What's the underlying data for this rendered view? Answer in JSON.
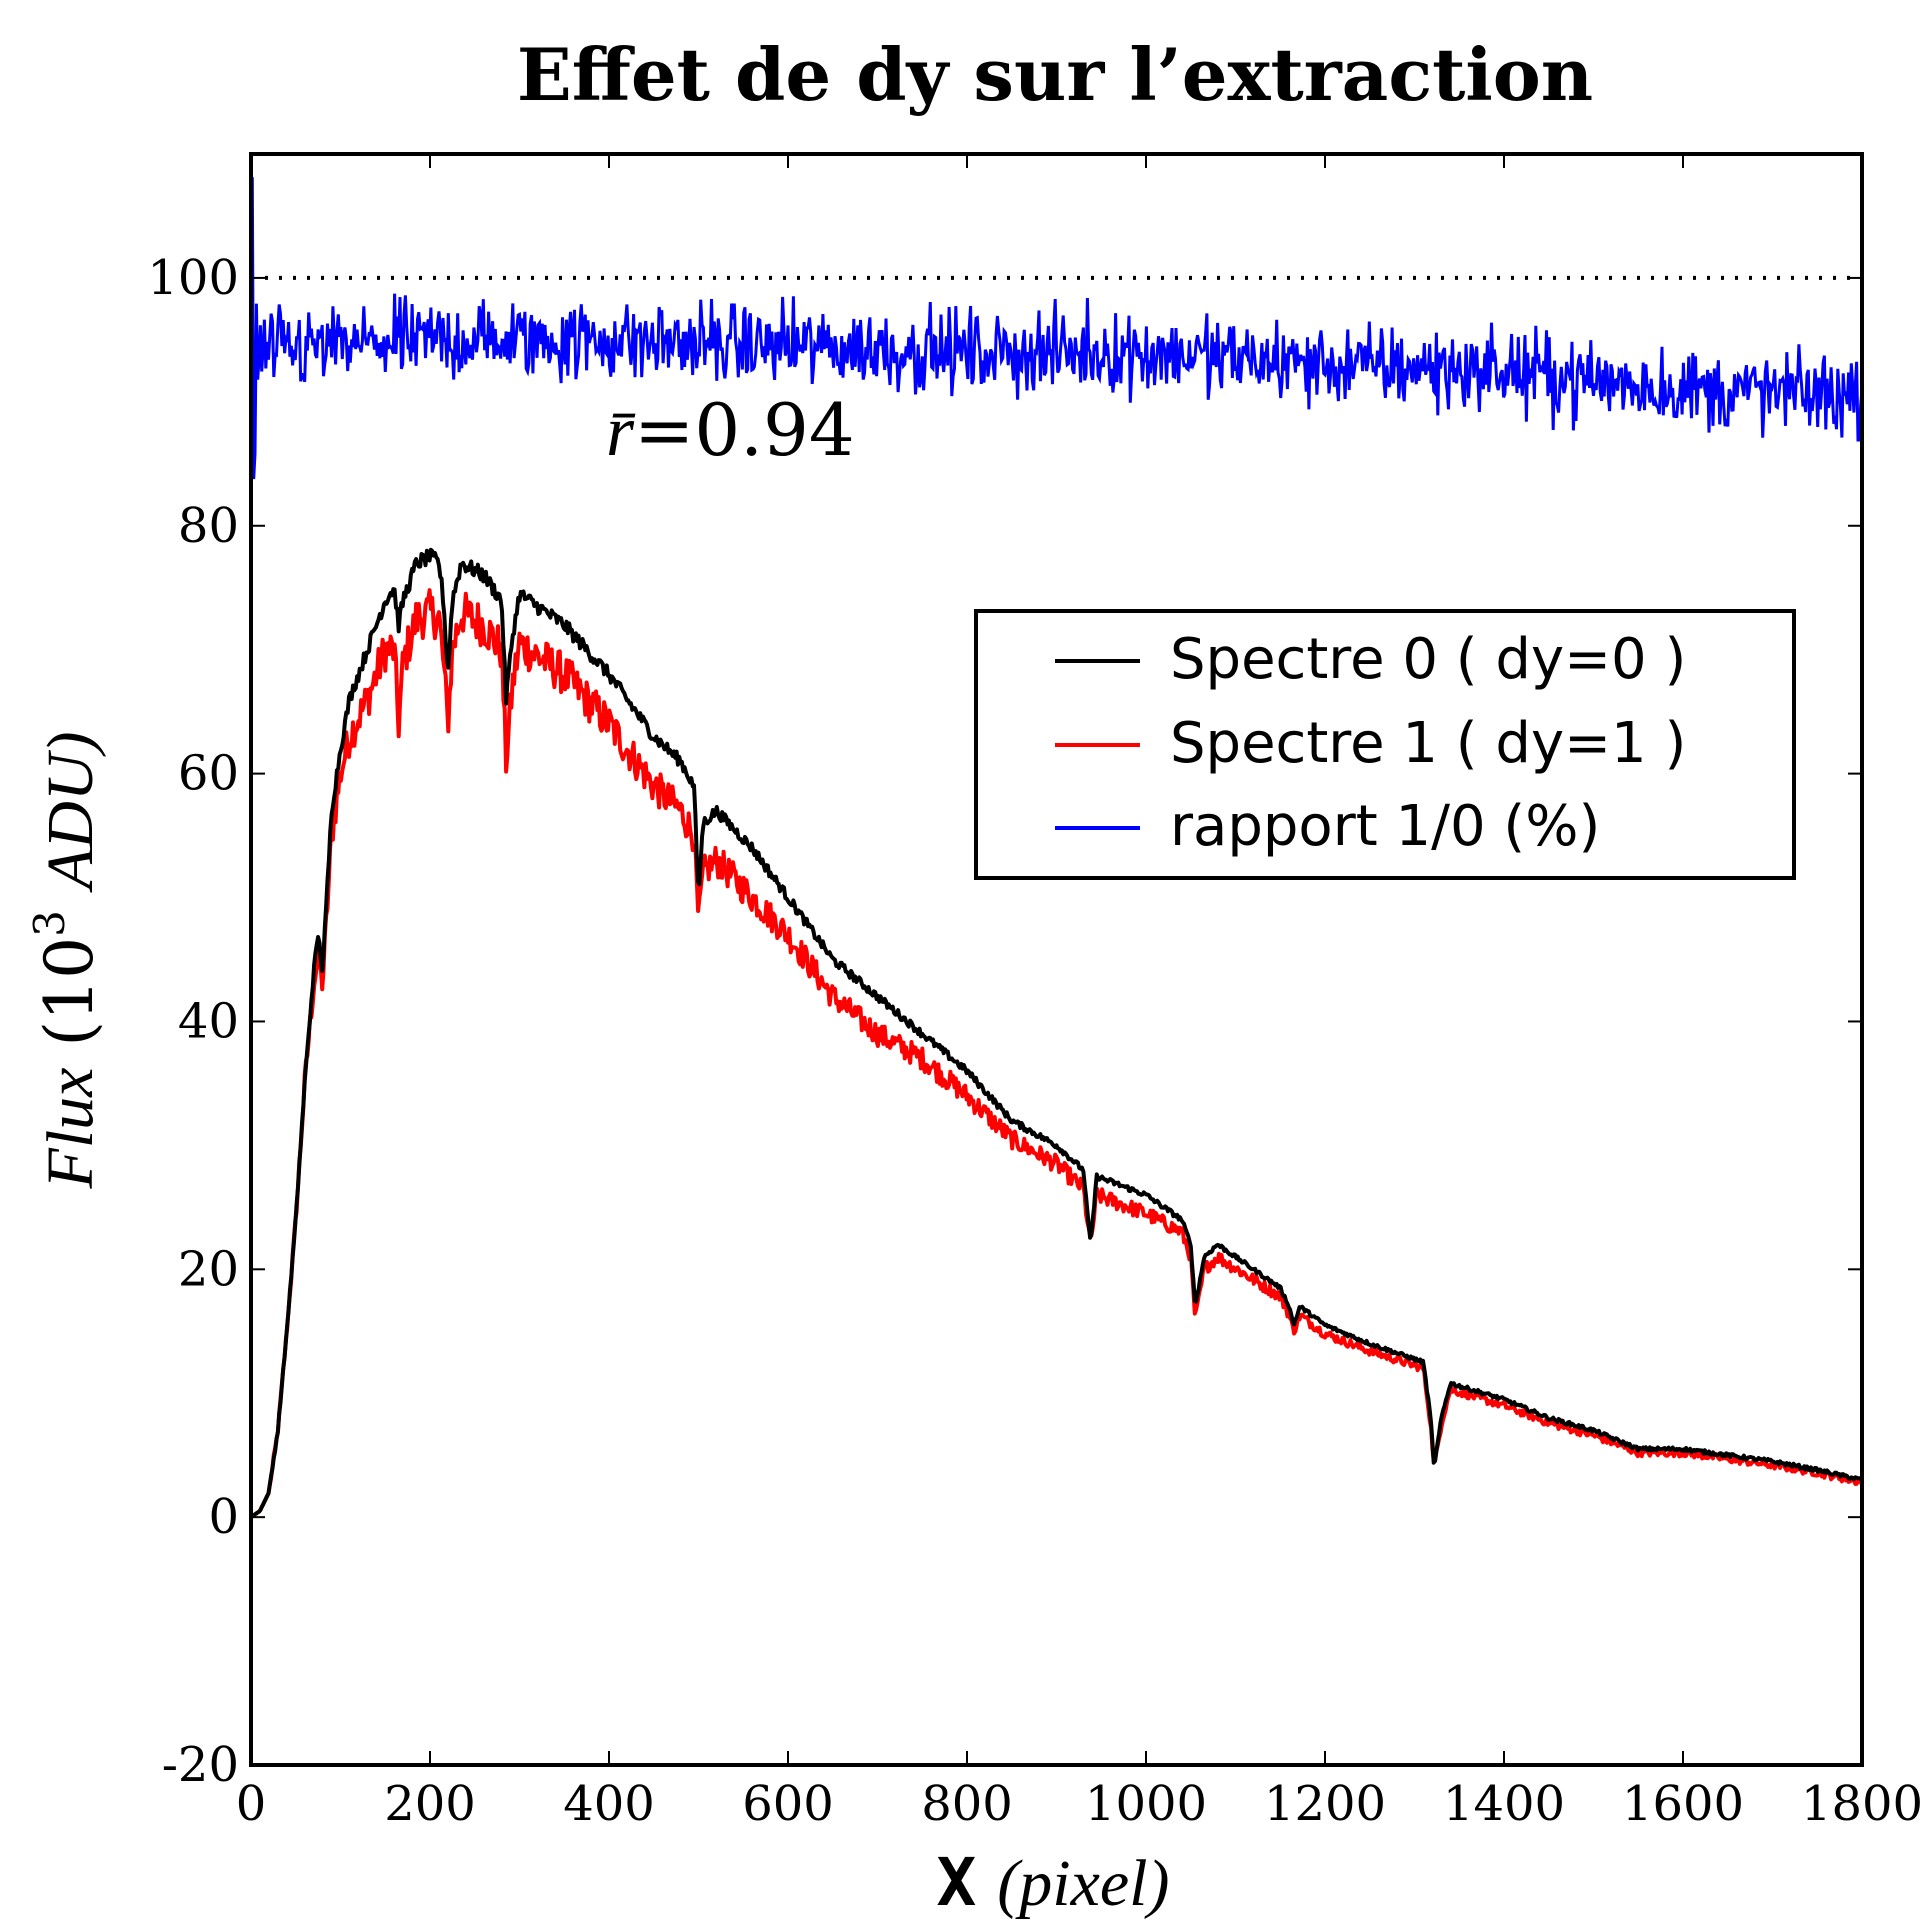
{
  "chart_data": {
    "type": "line",
    "title": "Effet de dy sur l’extraction",
    "xlabel_prefix": "X",
    "xlabel_unit": "(pixel)",
    "ylabel_main": "Flux",
    "ylabel_unit_open": "(10",
    "ylabel_exp": "3",
    "ylabel_unit_close": "ADU)",
    "xlim": [
      0,
      1800
    ],
    "ylim": [
      -20,
      110
    ],
    "xticks": [
      "0",
      "200",
      "400",
      "600",
      "800",
      "1000",
      "1200",
      "1400",
      "1600",
      "1800"
    ],
    "yticks": [
      "-20",
      "0",
      "20",
      "40",
      "60",
      "80",
      "100"
    ],
    "grid": false,
    "legend_placement": "center-right",
    "reference_line": {
      "y": 100,
      "style": "dotted",
      "color": "#000000"
    },
    "annotation": {
      "text_symbol": "r̄",
      "text_value": "=0.94",
      "x": 400,
      "y": 86
    },
    "series": [
      {
        "name": "Spectre 0 ( dy=0 )",
        "color": "#000000",
        "points": [
          [
            0,
            0
          ],
          [
            10,
            0.5
          ],
          [
            20,
            2
          ],
          [
            30,
            7
          ],
          [
            40,
            15
          ],
          [
            50,
            24
          ],
          [
            60,
            35
          ],
          [
            70,
            44
          ],
          [
            75,
            47
          ],
          [
            80,
            44
          ],
          [
            90,
            57
          ],
          [
            100,
            62
          ],
          [
            110,
            66
          ],
          [
            130,
            70
          ],
          [
            150,
            74
          ],
          [
            160,
            75
          ],
          [
            165,
            72
          ],
          [
            170,
            74
          ],
          [
            185,
            77
          ],
          [
            200,
            77.5
          ],
          [
            210,
            77
          ],
          [
            215,
            74
          ],
          [
            220,
            68
          ],
          [
            225,
            74
          ],
          [
            235,
            77
          ],
          [
            260,
            76
          ],
          [
            280,
            74
          ],
          [
            285,
            66
          ],
          [
            292,
            71
          ],
          [
            300,
            74.5
          ],
          [
            350,
            72
          ],
          [
            400,
            68
          ],
          [
            450,
            63
          ],
          [
            480,
            61
          ],
          [
            495,
            59
          ],
          [
            500,
            50
          ],
          [
            505,
            56
          ],
          [
            520,
            57
          ],
          [
            560,
            54
          ],
          [
            600,
            50
          ],
          [
            650,
            45
          ],
          [
            700,
            42
          ],
          [
            750,
            39
          ],
          [
            800,
            36
          ],
          [
            850,
            32
          ],
          [
            900,
            30
          ],
          [
            930,
            28
          ],
          [
            938,
            22
          ],
          [
            945,
            27.5
          ],
          [
            1000,
            26
          ],
          [
            1040,
            24
          ],
          [
            1050,
            22
          ],
          [
            1055,
            17
          ],
          [
            1065,
            21
          ],
          [
            1080,
            22
          ],
          [
            1150,
            18.5
          ],
          [
            1160,
            17
          ],
          [
            1165,
            15.5
          ],
          [
            1172,
            17
          ],
          [
            1200,
            15.5
          ],
          [
            1250,
            14
          ],
          [
            1310,
            12.5
          ],
          [
            1318,
            8
          ],
          [
            1322,
            4
          ],
          [
            1330,
            8
          ],
          [
            1340,
            10.8
          ],
          [
            1400,
            9.5
          ],
          [
            1450,
            8
          ],
          [
            1500,
            7
          ],
          [
            1550,
            5.5
          ],
          [
            1600,
            5.5
          ],
          [
            1650,
            5
          ],
          [
            1700,
            4.5
          ],
          [
            1750,
            3.8
          ],
          [
            1800,
            3
          ]
        ]
      },
      {
        "name": "Spectre 1 ( dy=1 )",
        "color": "#ff0000",
        "points": [
          [
            0,
            0
          ],
          [
            10,
            0.5
          ],
          [
            20,
            2
          ],
          [
            30,
            7
          ],
          [
            40,
            15
          ],
          [
            50,
            24
          ],
          [
            60,
            35
          ],
          [
            70,
            43
          ],
          [
            75,
            45
          ],
          [
            80,
            43
          ],
          [
            90,
            55
          ],
          [
            100,
            60
          ],
          [
            110,
            63
          ],
          [
            130,
            66
          ],
          [
            150,
            70
          ],
          [
            160,
            70
          ],
          [
            165,
            64
          ],
          [
            170,
            69
          ],
          [
            185,
            72.5
          ],
          [
            200,
            73
          ],
          [
            210,
            72.5
          ],
          [
            215,
            69
          ],
          [
            220,
            64
          ],
          [
            225,
            70
          ],
          [
            235,
            73
          ],
          [
            260,
            72
          ],
          [
            280,
            70
          ],
          [
            285,
            61
          ],
          [
            292,
            67
          ],
          [
            300,
            70.5
          ],
          [
            350,
            68
          ],
          [
            400,
            64
          ],
          [
            450,
            59
          ],
          [
            480,
            57
          ],
          [
            495,
            55
          ],
          [
            500,
            48
          ],
          [
            505,
            52
          ],
          [
            520,
            53
          ],
          [
            560,
            50
          ],
          [
            600,
            47
          ],
          [
            650,
            42
          ],
          [
            700,
            39
          ],
          [
            750,
            37
          ],
          [
            800,
            34
          ],
          [
            850,
            30.5
          ],
          [
            900,
            28.5
          ],
          [
            930,
            26.5
          ],
          [
            938,
            22
          ],
          [
            945,
            26
          ],
          [
            1000,
            24.5
          ],
          [
            1040,
            23
          ],
          [
            1050,
            21
          ],
          [
            1055,
            16
          ],
          [
            1065,
            20
          ],
          [
            1080,
            21
          ],
          [
            1150,
            17.8
          ],
          [
            1160,
            16.3
          ],
          [
            1165,
            15
          ],
          [
            1172,
            16.3
          ],
          [
            1200,
            14.8
          ],
          [
            1250,
            13.4
          ],
          [
            1310,
            12
          ],
          [
            1318,
            7.5
          ],
          [
            1322,
            4
          ],
          [
            1330,
            7.5
          ],
          [
            1340,
            10.3
          ],
          [
            1400,
            9
          ],
          [
            1450,
            7.6
          ],
          [
            1500,
            6.6
          ],
          [
            1550,
            5.2
          ],
          [
            1600,
            5.2
          ],
          [
            1650,
            4.7
          ],
          [
            1700,
            4.2
          ],
          [
            1750,
            3.6
          ],
          [
            1800,
            2.8
          ]
        ]
      },
      {
        "name": "rapport 1/0 (%)",
        "color": "#0000ff",
        "trend": [
          [
            0,
            94
          ],
          [
            200,
            95
          ],
          [
            400,
            95
          ],
          [
            600,
            94.5
          ],
          [
            800,
            94
          ],
          [
            1000,
            94
          ],
          [
            1200,
            93
          ],
          [
            1400,
            92.5
          ],
          [
            1600,
            91
          ],
          [
            1800,
            90.5
          ]
        ],
        "noise_amplitude": 2.5
      }
    ]
  }
}
